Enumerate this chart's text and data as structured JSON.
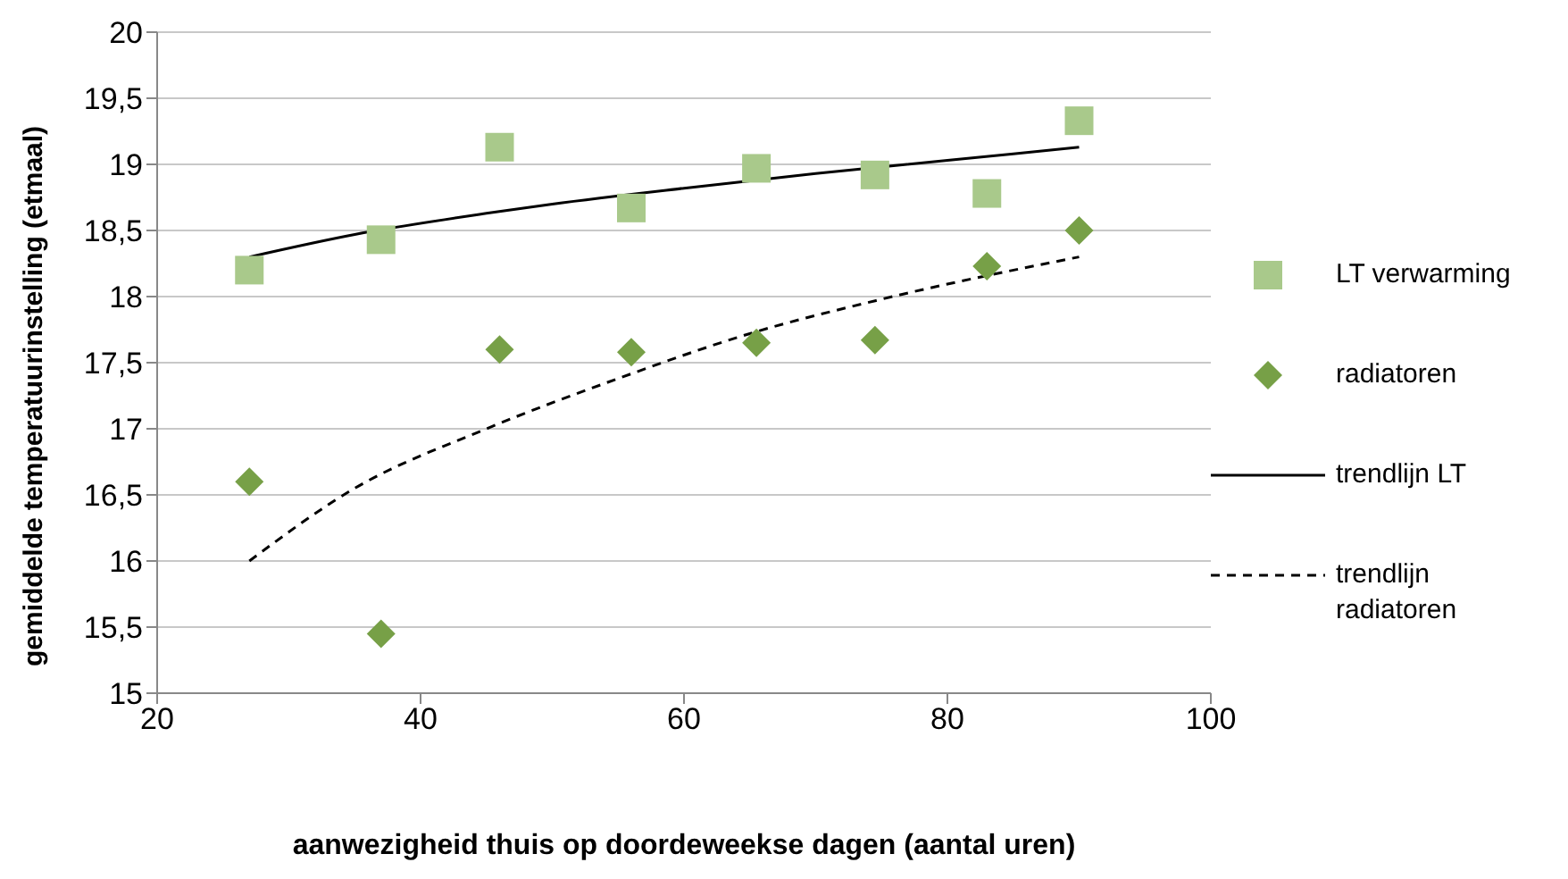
{
  "chart_data": {
    "type": "scatter",
    "xlabel": "aanwezigheid thuis op doordeweekse  dagen (aantal uren)",
    "ylabel": "gemiddelde temperatuurinstelling  (etmaal)",
    "xlim": [
      20,
      100
    ],
    "xticks": [
      20,
      40,
      60,
      80,
      100
    ],
    "ylim": [
      15,
      20
    ],
    "yticks": [
      15,
      {
        "value": 15.5,
        "label": "15,5"
      },
      16,
      {
        "value": 16.5,
        "label": "16,5"
      },
      17,
      {
        "value": 17.5,
        "label": "17,5"
      },
      18,
      {
        "value": 18.5,
        "label": "18,5"
      },
      19,
      {
        "value": 19.5,
        "label": "19,5"
      },
      20
    ],
    "grid": "y",
    "legend": "right",
    "series": [
      {
        "name": "LT verwarming",
        "marker": "square",
        "color": "#a9c98b",
        "x": [
          27,
          37,
          46,
          56,
          65.5,
          74.5,
          83,
          90
        ],
        "values": [
          18.2,
          18.43,
          19.13,
          18.67,
          18.97,
          18.92,
          18.78,
          19.33
        ]
      },
      {
        "name": "radiatoren",
        "marker": "diamond",
        "color": "#77a047",
        "x": [
          27,
          37,
          46,
          56,
          65.5,
          74.5,
          83,
          90
        ],
        "values": [
          16.6,
          15.45,
          17.6,
          17.58,
          17.65,
          17.67,
          18.23,
          18.5
        ]
      },
      {
        "name": "trendlijn LT",
        "type": "line",
        "marker": "none",
        "line_style": "solid",
        "color": "#000000",
        "x": [
          27,
          35,
          45,
          50,
          60,
          70,
          80,
          90
        ],
        "values": [
          18.3,
          18.47,
          18.63,
          18.7,
          18.82,
          18.93,
          19.03,
          19.13
        ]
      },
      {
        "name": "trendlijn radiatoren",
        "type": "line",
        "marker": "none",
        "line_style": "dashed",
        "color": "#000000",
        "x": [
          27,
          35,
          45,
          55,
          65,
          75,
          90
        ],
        "values": [
          16.0,
          16.55,
          17.0,
          17.38,
          17.72,
          17.98,
          18.3
        ]
      }
    ]
  }
}
